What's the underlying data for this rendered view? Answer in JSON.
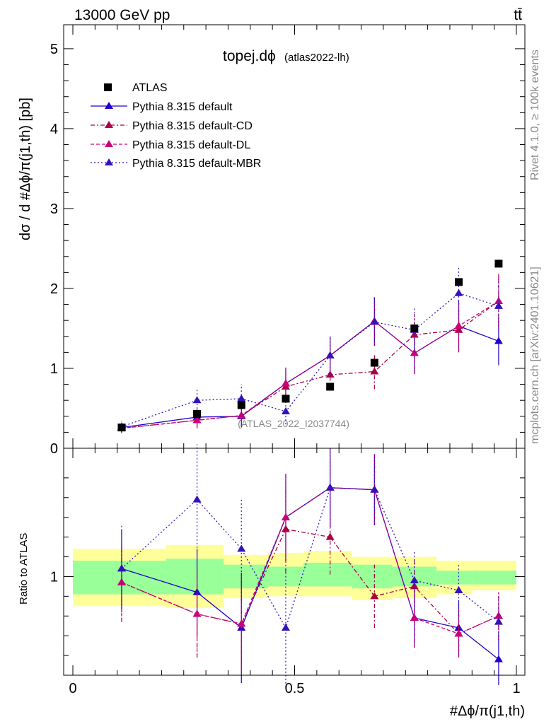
{
  "chart_data": {
    "type": "line",
    "header": {
      "left": "13000 GeV pp",
      "right": "tt̄"
    },
    "title": "topej.dϕ",
    "title_sub": "(atlas2022-lh)",
    "watermark": "(ATLAS_2022_I2037744)",
    "side_right_top": "Rivet 4.1.0, ≥ 100k events",
    "side_right_bottom": "mcplots.cern.ch [arXiv:2401.10621]",
    "ylabel_main": "dσ / d #Δϕ/π(j1,th) [pb]",
    "ylabel_ratio": "Ratio to ATLAS",
    "xlabel": "#Δϕ/π(j1,th)",
    "x_range": [
      0,
      1
    ],
    "y_range_main": [
      0,
      5.3
    ],
    "y_range_ratio": [
      0.5,
      1.65
    ],
    "x_ticks": [
      "0",
      "0.5",
      "1"
    ],
    "y_ticks_main": [
      "0",
      "1",
      "2",
      "3",
      "4",
      "5"
    ],
    "y_ticks_ratio": [
      "1"
    ],
    "x_points": [
      0.11,
      0.28,
      0.38,
      0.48,
      0.58,
      0.68,
      0.77,
      0.87,
      0.96
    ],
    "band_edges": [
      0.0,
      0.21,
      0.34,
      0.44,
      0.52,
      0.63,
      0.72,
      0.82,
      0.9,
      1.0
    ],
    "band_inner": [
      [
        0.91,
        1.08
      ],
      [
        0.91,
        1.09
      ],
      [
        0.94,
        1.06
      ],
      [
        0.95,
        1.05
      ],
      [
        0.95,
        1.07
      ],
      [
        0.94,
        1.06
      ],
      [
        0.95,
        1.05
      ],
      [
        0.96,
        1.03
      ],
      [
        0.96,
        1.03
      ]
    ],
    "band_outer": [
      [
        0.85,
        1.14
      ],
      [
        0.84,
        1.16
      ],
      [
        0.89,
        1.11
      ],
      [
        0.9,
        1.12
      ],
      [
        0.9,
        1.13
      ],
      [
        0.88,
        1.1
      ],
      [
        0.89,
        1.1
      ],
      [
        0.91,
        1.08
      ],
      [
        0.93,
        1.08
      ]
    ],
    "data": {
      "name": "ATLAS",
      "values": [
        0.26,
        0.43,
        0.54,
        0.62,
        0.77,
        1.07,
        1.5,
        2.08,
        2.31
      ]
    },
    "series": [
      {
        "name": "Pythia 8.315 default",
        "color": "#2200cc",
        "dash": "",
        "values": [
          0.26,
          0.39,
          0.4,
          0.81,
          1.16,
          1.59,
          1.19,
          1.53,
          1.34
        ],
        "errors": [
          0.06,
          0.1,
          0.14,
          0.2,
          0.24,
          0.3,
          0.26,
          0.32,
          0.3
        ],
        "ratio": [
          1.04,
          0.92,
          0.74,
          1.3,
          1.45,
          1.44,
          0.79,
          0.74,
          0.58
        ],
        "ratio_errors": [
          0.2,
          0.22,
          0.28,
          0.22,
          0.2,
          0.18,
          0.15,
          0.14,
          0.13
        ]
      },
      {
        "name": "Pythia 8.315 default-CD",
        "color": "#aa0044",
        "dash": "6,3,2,3",
        "values": [
          0.25,
          0.35,
          0.41,
          0.77,
          0.92,
          0.96,
          1.42,
          1.48,
          1.84
        ],
        "errors": [
          0.06,
          0.1,
          0.14,
          0.18,
          0.2,
          0.22,
          0.26,
          0.28,
          0.34
        ],
        "ratio": [
          0.97,
          0.81,
          0.76,
          1.24,
          1.2,
          0.9,
          0.95,
          0.71,
          0.8
        ],
        "ratio_errors": [
          0.2,
          0.22,
          0.25,
          0.22,
          0.19,
          0.16,
          0.14,
          0.12,
          0.12
        ]
      },
      {
        "name": "Pythia 8.315 default-DL",
        "color": "#cc0077",
        "dash": "5,3",
        "values": [
          0.25,
          0.35,
          0.41,
          0.81,
          1.16,
          1.59,
          1.19,
          1.53,
          1.84
        ],
        "errors": [
          0.06,
          0.1,
          0.14,
          0.2,
          0.24,
          0.3,
          0.26,
          0.32,
          0.34
        ],
        "ratio": [
          0.97,
          0.81,
          0.76,
          1.3,
          1.45,
          1.44,
          0.79,
          0.71,
          0.8
        ],
        "ratio_errors": [
          0.2,
          0.22,
          0.25,
          0.22,
          0.2,
          0.18,
          0.15,
          0.12,
          0.12
        ]
      },
      {
        "name": "Pythia 8.315 default-MBR",
        "color": "#3311bb",
        "dash": "2,3",
        "values": [
          0.27,
          0.6,
          0.62,
          0.46,
          1.16,
          1.58,
          1.48,
          1.94,
          1.78
        ],
        "errors": [
          0.07,
          0.15,
          0.18,
          0.16,
          0.24,
          0.3,
          0.28,
          0.32,
          0.34
        ],
        "ratio": [
          1.04,
          1.39,
          1.14,
          0.74,
          1.45,
          1.44,
          0.98,
          0.93,
          0.77
        ],
        "ratio_errors": [
          0.22,
          0.28,
          0.26,
          0.3,
          0.2,
          0.18,
          0.15,
          0.13,
          0.13
        ]
      }
    ]
  }
}
